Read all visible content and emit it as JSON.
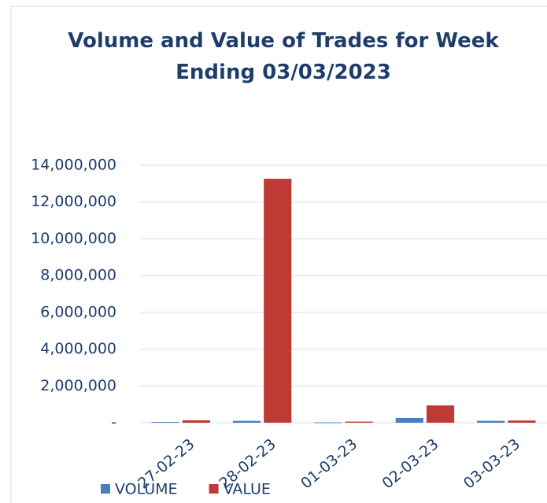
{
  "chart_data": {
    "type": "bar",
    "title": "Volume and Value of Trades for Week Ending 03/03/2023",
    "categories": [
      "27-02-23",
      "28-02-23",
      "01-03-23",
      "02-03-23",
      "03-03-23"
    ],
    "series": [
      {
        "name": "VOLUME",
        "color": "#4a7ebf",
        "values": [
          40000,
          100000,
          20000,
          260000,
          100000
        ]
      },
      {
        "name": "VALUE",
        "color": "#be3a34",
        "values": [
          130000,
          13270000,
          60000,
          940000,
          120000
        ]
      }
    ],
    "ylim": [
      0,
      14000000
    ],
    "yticks": [
      {
        "value": 0,
        "label": "-"
      },
      {
        "value": 2000000,
        "label": "2,000,000"
      },
      {
        "value": 4000000,
        "label": "4,000,000"
      },
      {
        "value": 6000000,
        "label": "6,000,000"
      },
      {
        "value": 8000000,
        "label": "8,000,000"
      },
      {
        "value": 10000000,
        "label": "10,000,000"
      },
      {
        "value": 12000000,
        "label": "12,000,000"
      },
      {
        "value": 14000000,
        "label": "14,000,000"
      }
    ],
    "grid": true,
    "legend": "bottom"
  }
}
